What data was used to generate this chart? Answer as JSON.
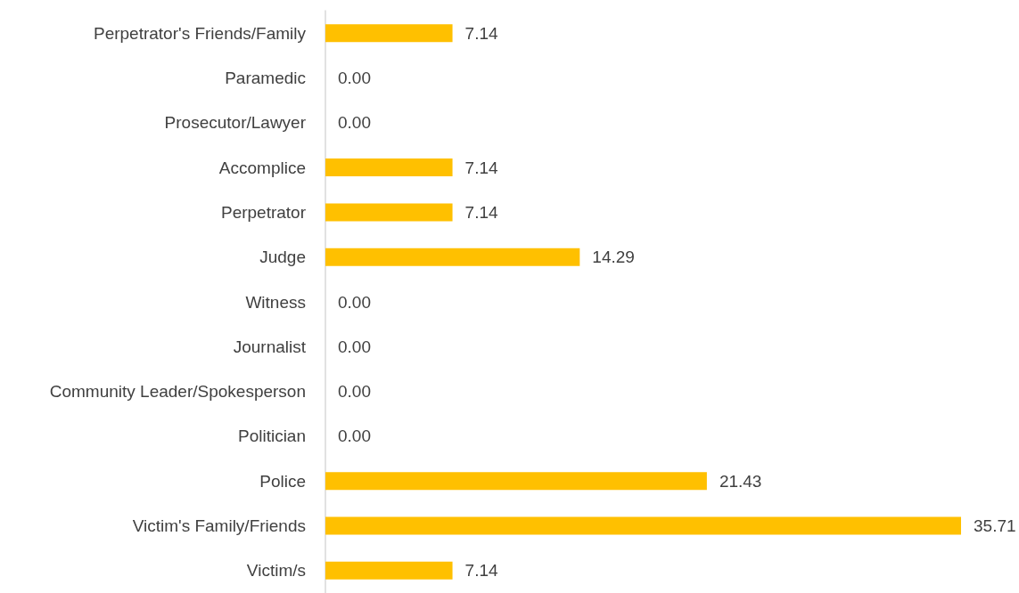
{
  "chart_data": {
    "type": "bar",
    "orientation": "horizontal",
    "categories": [
      "Perpetrator's Friends/Family",
      "Paramedic",
      "Prosecutor/Lawyer",
      "Accomplice",
      "Perpetrator",
      "Judge",
      "Witness",
      "Journalist",
      "Community Leader/Spokesperson",
      "Politician",
      "Police",
      "Victim's Family/Friends",
      "Victim/s"
    ],
    "values": [
      7.14,
      0.0,
      0.0,
      7.14,
      7.14,
      14.29,
      0.0,
      0.0,
      0.0,
      0.0,
      21.43,
      35.71,
      7.14
    ],
    "value_labels": [
      "7.14",
      "0.00",
      "0.00",
      "7.14",
      "7.14",
      "14.29",
      "0.00",
      "0.00",
      "0.00",
      "0.00",
      "21.43",
      "35.71",
      "7.14"
    ],
    "color": "#ffc000"
  }
}
